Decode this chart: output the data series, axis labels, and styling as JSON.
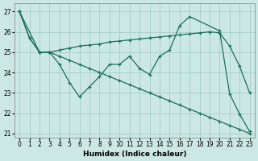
{
  "xlabel": "Humidex (Indice chaleur)",
  "bg_color": "#cce8e4",
  "line_color": "#1a6e5e",
  "grid_color": "#aad0cc",
  "xlim": [
    -0.5,
    23.5
  ],
  "ylim": [
    20.8,
    27.4
  ],
  "yticks": [
    21,
    22,
    23,
    24,
    25,
    26,
    27
  ],
  "xticks": [
    0,
    1,
    2,
    3,
    4,
    5,
    6,
    7,
    8,
    9,
    10,
    11,
    12,
    13,
    14,
    15,
    16,
    17,
    18,
    19,
    20,
    21,
    22,
    23
  ],
  "line1_x": [
    0,
    1,
    2,
    3,
    4,
    5,
    6,
    7,
    8,
    9,
    10,
    11,
    12,
    13,
    14,
    15,
    16,
    17,
    20,
    21,
    22,
    23
  ],
  "line1_y": [
    27.0,
    25.7,
    25.0,
    25.0,
    24.4,
    23.5,
    22.8,
    23.3,
    23.8,
    24.4,
    24.4,
    24.8,
    24.2,
    23.9,
    24.8,
    25.1,
    26.3,
    26.75,
    26.05,
    22.95,
    21.95,
    21.1
  ],
  "line2_x": [
    0,
    2,
    3,
    4,
    5,
    6,
    7,
    8,
    9,
    10,
    11,
    12,
    13,
    14,
    15,
    16,
    17,
    18,
    19,
    20,
    21,
    22,
    23
  ],
  "line2_y": [
    27.0,
    25.0,
    25.0,
    25.1,
    25.2,
    25.3,
    25.35,
    25.4,
    25.5,
    25.55,
    25.6,
    25.65,
    25.7,
    25.75,
    25.8,
    25.85,
    25.9,
    25.95,
    26.0,
    25.95,
    25.3,
    24.3,
    23.0
  ],
  "line3_x": [
    0,
    1,
    2,
    3,
    4,
    5,
    6,
    7,
    8,
    9,
    10,
    11,
    12,
    13,
    14,
    15,
    16,
    17,
    18,
    19,
    20,
    21,
    22,
    23
  ],
  "line3_y": [
    27.0,
    25.7,
    25.0,
    25.0,
    24.8,
    24.6,
    24.4,
    24.2,
    24.0,
    23.8,
    23.6,
    23.4,
    23.2,
    23.0,
    22.8,
    22.6,
    22.4,
    22.2,
    22.0,
    21.8,
    21.6,
    21.4,
    21.2,
    21.0
  ]
}
